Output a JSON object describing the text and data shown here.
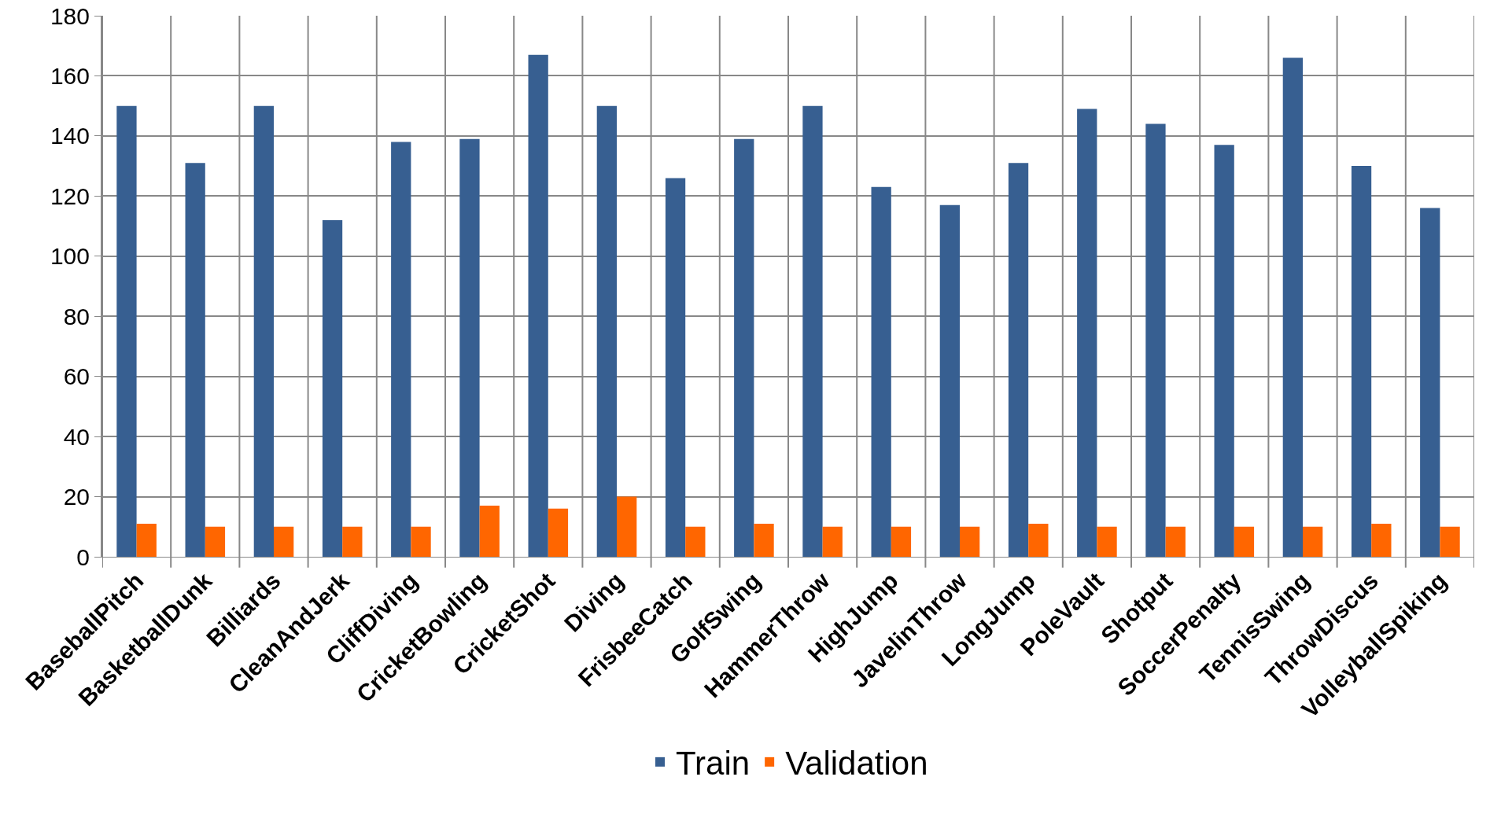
{
  "chart_data": {
    "type": "bar",
    "categories": [
      "BaseballPitch",
      "BasketballDunk",
      "Billiards",
      "CleanAndJerk",
      "CliffDiving",
      "CricketBowling",
      "CricketShot",
      "Diving",
      "FrisbeeCatch",
      "GolfSwing",
      "HammerThrow",
      "HighJump",
      "JavelinThrow",
      "LongJump",
      "PoleVault",
      "Shotput",
      "SoccerPenalty",
      "TennisSwing",
      "ThrowDiscus",
      "VolleyballSpiking"
    ],
    "series": [
      {
        "name": "Train",
        "color": "#375f91",
        "values": [
          150,
          131,
          150,
          112,
          138,
          139,
          167,
          150,
          126,
          139,
          150,
          123,
          117,
          131,
          149,
          144,
          137,
          166,
          130,
          116
        ]
      },
      {
        "name": "Validation",
        "color": "#ff6600",
        "values": [
          11,
          10,
          10,
          10,
          10,
          17,
          16,
          20,
          10,
          11,
          10,
          10,
          10,
          11,
          10,
          10,
          10,
          10,
          11,
          10
        ]
      }
    ],
    "ylim": [
      0,
      180
    ],
    "yticks": [
      0,
      20,
      40,
      60,
      80,
      100,
      120,
      140,
      160,
      180
    ],
    "grid": true,
    "legend": "bottom"
  }
}
